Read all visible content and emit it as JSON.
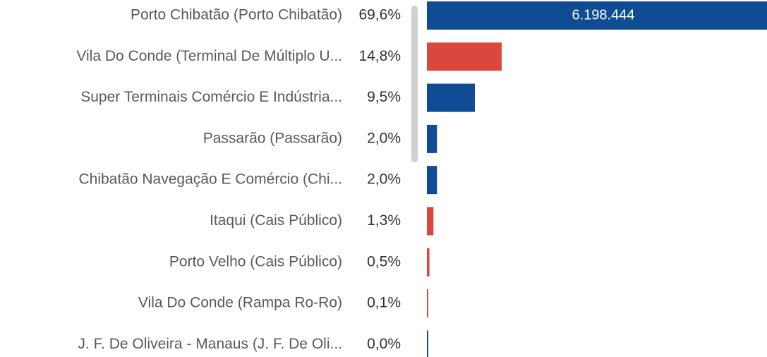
{
  "chart_data": {
    "type": "bar",
    "orientation": "horizontal",
    "categories": [
      "Porto Chibatão (Porto Chibatão)",
      "Vila Do Conde (Terminal De Múltiplo U...",
      "Super Terminais Comércio E Indústria...",
      "Passarão (Passarão)",
      "Chibatão Navegação E Comércio (Chi...",
      "Itaqui (Cais Público)",
      "Porto Velho (Cais Público)",
      "Vila Do Conde (Rampa Ro-Ro)",
      "J. F. De Oliveira - Manaus (J. F. De Oli..."
    ],
    "values": [
      69.6,
      14.8,
      9.5,
      2.0,
      2.0,
      1.3,
      0.5,
      0.1,
      0.0
    ],
    "value_labels": [
      "69,6%",
      "14,8%",
      "9,5%",
      "2,0%",
      "2,0%",
      "1,3%",
      "0,5%",
      "0,1%",
      "0,0%"
    ],
    "colors": [
      "#0f4c93",
      "#d9473d",
      "#0f4c93",
      "#0f4c93",
      "#0f4c93",
      "#d9473d",
      "#d9473d",
      "#d9473d",
      "#0f4c93"
    ],
    "bar_annotation": "6.198.444"
  }
}
